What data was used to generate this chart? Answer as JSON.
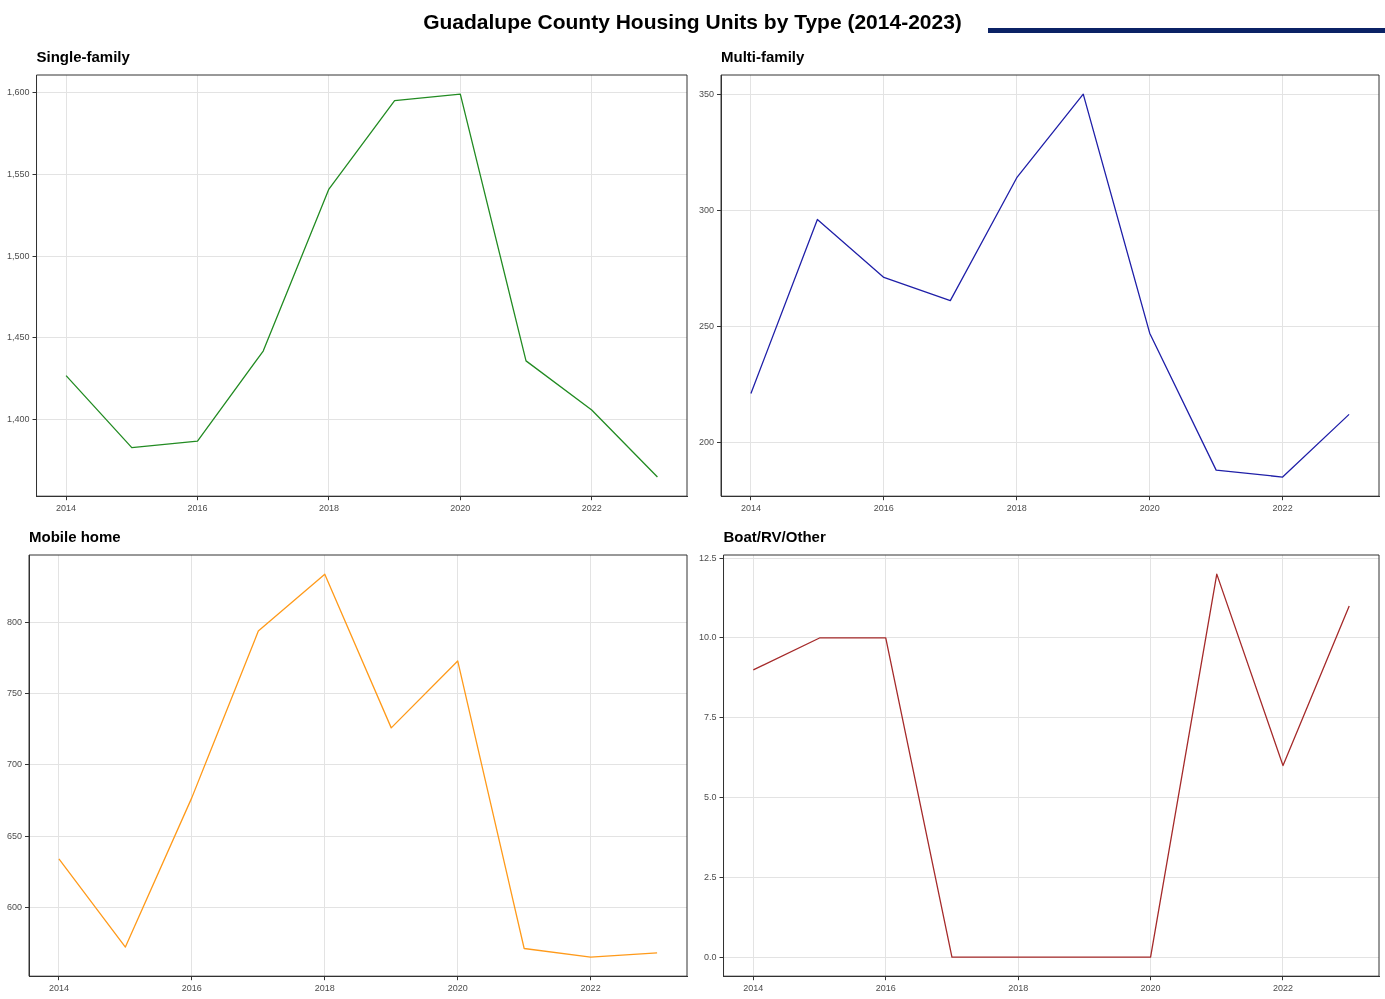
{
  "chart_data": [
    {
      "type": "line",
      "title": "Single-family",
      "annotations": [
        "Guadalupe County Housing Units by Type (2014-2023)"
      ],
      "x": [
        2014,
        2015,
        2016,
        2017,
        2018,
        2019,
        2020,
        2021,
        2022,
        2023
      ],
      "series": [
        {
          "color": "#228b22",
          "values": [
            1427,
            1383,
            1387,
            1442,
            1541,
            1595,
            1599,
            1436,
            1406,
            1365
          ]
        }
      ],
      "xlim": [
        2013.55,
        2023.45
      ],
      "xticks": [
        2014,
        2016,
        2018,
        2020,
        2022
      ],
      "ylim": [
        1353.3,
        1610.7
      ],
      "yticks": [
        {
          "value": 1400,
          "label": "1,400"
        },
        {
          "value": 1450,
          "label": "1,450"
        },
        {
          "value": 1500,
          "label": "1,500"
        },
        {
          "value": 1550,
          "label": "1,550"
        },
        {
          "value": 1600,
          "label": "1,600"
        }
      ],
      "grid": true,
      "legend": false,
      "marker": "none",
      "line_style": "solid"
    },
    {
      "type": "line",
      "title": "Multi-family",
      "x": [
        2014,
        2015,
        2016,
        2017,
        2018,
        2019,
        2020,
        2021,
        2022,
        2023
      ],
      "series": [
        {
          "color": "#1f1fa8",
          "values": [
            221,
            296,
            271,
            261,
            314,
            350,
            247,
            188,
            185,
            212
          ]
        }
      ],
      "xlim": [
        2013.55,
        2023.45
      ],
      "xticks": [
        2014,
        2016,
        2018,
        2020,
        2022
      ],
      "ylim": [
        176.75,
        358.25
      ],
      "yticks": [
        200,
        250,
        300,
        350
      ],
      "grid": true,
      "legend": false,
      "marker": "none",
      "line_style": "solid"
    },
    {
      "type": "line",
      "title": "Mobile home",
      "x": [
        2014,
        2015,
        2016,
        2017,
        2018,
        2019,
        2020,
        2021,
        2022,
        2023
      ],
      "series": [
        {
          "color": "#ff9a1a",
          "values": [
            634,
            572,
            677,
            794,
            834,
            726,
            773,
            571,
            565,
            568
          ]
        }
      ],
      "xlim": [
        2013.55,
        2023.45
      ],
      "xticks": [
        2014,
        2016,
        2018,
        2020,
        2022
      ],
      "ylim": [
        551.55,
        847.45
      ],
      "yticks": [
        600,
        650,
        700,
        750,
        800
      ],
      "grid": true,
      "legend": false,
      "marker": "none",
      "line_style": "solid"
    },
    {
      "type": "line",
      "title": "Boat/RV/Other",
      "x": [
        2014,
        2015,
        2016,
        2017,
        2018,
        2019,
        2020,
        2021,
        2022,
        2023
      ],
      "series": [
        {
          "color": "#a52a2a",
          "values": [
            9,
            10,
            10,
            0,
            0,
            0,
            0,
            12,
            6,
            11
          ]
        }
      ],
      "xlim": [
        2013.55,
        2023.45
      ],
      "xticks": [
        2014,
        2016,
        2018,
        2020,
        2022
      ],
      "ylim": [
        -0.6,
        12.6
      ],
      "yticks": [
        {
          "value": 0,
          "label": "0.0"
        },
        {
          "value": 2.5,
          "label": "2.5"
        },
        {
          "value": 5,
          "label": "5.0"
        },
        {
          "value": 7.5,
          "label": "7.5"
        },
        {
          "value": 10,
          "label": "10.0"
        },
        {
          "value": 12.5,
          "label": "12.5"
        }
      ],
      "grid": true,
      "legend": false,
      "marker": "none",
      "line_style": "solid"
    }
  ]
}
